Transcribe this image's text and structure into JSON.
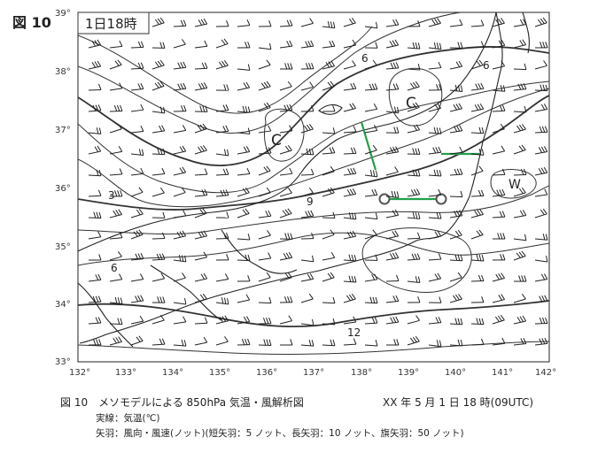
{
  "figure_label": "図 10",
  "time_box": "1日18時",
  "lat_labels": [
    "39°",
    "38°",
    "37°",
    "36°",
    "35°",
    "34°",
    "33°"
  ],
  "lon_labels": [
    "132°",
    "133°",
    "134°",
    "135°",
    "136°",
    "137°",
    "138°",
    "139°",
    "140°",
    "141°",
    "142°"
  ],
  "contour_labels": [
    "3",
    "6",
    "6",
    "6",
    "9",
    "12"
  ],
  "center_labels": {
    "c1": "C",
    "c2": "C",
    "w": "W"
  },
  "caption": {
    "title": "図 10　メソモデルによる 850hPa 気温・風解析図",
    "datetime": "XX 年 5 月 1 日 18 時(09UTC)",
    "line2": "実線：気温(℃)",
    "line3": "矢羽：風向・風速(ノット)(短矢羽：5 ノット、長矢羽：10 ノット、旗矢羽：50 ノット)"
  },
  "colors": {
    "green_lines": "#22a04a",
    "coast": "#222222",
    "contour": "#333333"
  }
}
